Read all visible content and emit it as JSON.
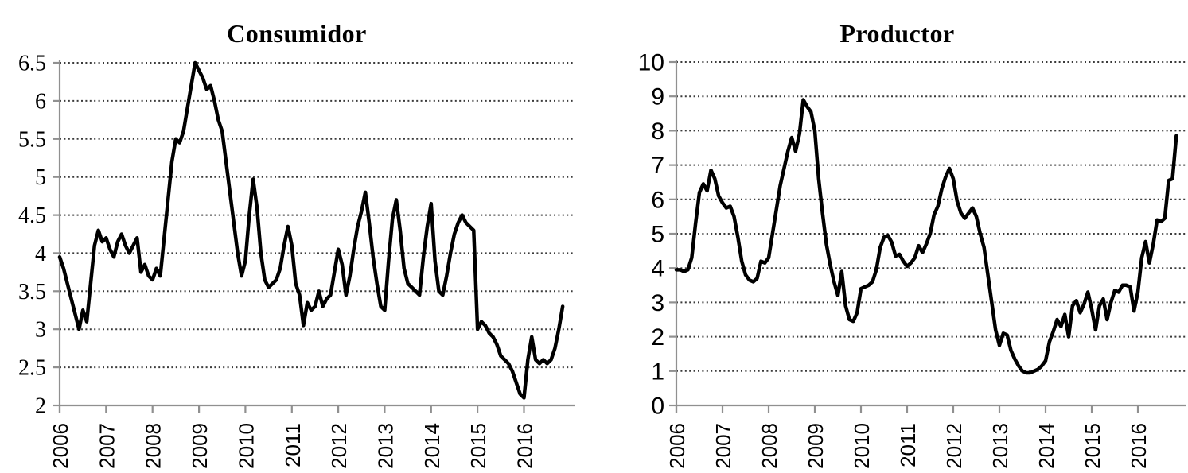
{
  "page": {
    "background": "#ffffff"
  },
  "chart_data": [
    {
      "type": "line",
      "title": "Consumidor",
      "x_unit": "monthly, Jan 2006 - Nov 2016",
      "x_tick_labels": [
        "2006",
        "2007",
        "2008",
        "2009",
        "2010",
        "2011",
        "2012",
        "2013",
        "2014",
        "2015",
        "2016"
      ],
      "ylim": [
        2,
        6.5
      ],
      "y_tick_labels": [
        "2",
        "2.5",
        "3",
        "3.5",
        "4",
        "4.5",
        "5",
        "5.5",
        "6",
        "6.5"
      ],
      "grid": "horizontal-dotted",
      "legend": "none",
      "line_color": "#000000",
      "axis_color": "#909090",
      "grid_color": "#3a3a3a",
      "values": [
        3.95,
        3.8,
        3.6,
        3.4,
        3.2,
        3.0,
        3.25,
        3.1,
        3.6,
        4.1,
        4.3,
        4.15,
        4.2,
        4.05,
        3.95,
        4.15,
        4.25,
        4.1,
        4.0,
        4.1,
        4.2,
        3.75,
        3.85,
        3.7,
        3.65,
        3.8,
        3.7,
        4.2,
        4.7,
        5.2,
        5.5,
        5.45,
        5.6,
        5.9,
        6.2,
        6.5,
        6.4,
        6.3,
        6.15,
        6.2,
        6.0,
        5.75,
        5.6,
        5.2,
        4.8,
        4.4,
        4.0,
        3.7,
        3.9,
        4.5,
        4.97,
        4.6,
        4.0,
        3.65,
        3.55,
        3.6,
        3.65,
        3.8,
        4.1,
        4.35,
        4.1,
        3.6,
        3.45,
        3.05,
        3.35,
        3.25,
        3.3,
        3.5,
        3.3,
        3.4,
        3.45,
        3.75,
        4.05,
        3.85,
        3.45,
        3.7,
        4.05,
        4.35,
        4.55,
        4.8,
        4.4,
        3.95,
        3.6,
        3.3,
        3.25,
        3.9,
        4.45,
        4.7,
        4.3,
        3.8,
        3.6,
        3.55,
        3.5,
        3.45,
        3.95,
        4.35,
        4.65,
        3.9,
        3.5,
        3.45,
        3.7,
        4.0,
        4.25,
        4.4,
        4.5,
        4.4,
        4.35,
        4.3,
        3.0,
        3.1,
        3.05,
        2.95,
        2.9,
        2.8,
        2.65,
        2.6,
        2.55,
        2.45,
        2.3,
        2.15,
        2.1,
        2.6,
        2.9,
        2.6,
        2.55,
        2.6,
        2.55,
        2.6,
        2.75,
        3.0,
        3.3
      ]
    },
    {
      "type": "line",
      "title": "Productor",
      "x_unit": "monthly, Jan 2006 - Nov 2016",
      "x_tick_labels": [
        "2006",
        "2007",
        "2008",
        "2009",
        "2010",
        "2011",
        "2012",
        "2013",
        "2014",
        "2015",
        "2016"
      ],
      "ylim": [
        0,
        10
      ],
      "y_tick_labels": [
        "0",
        "1",
        "2",
        "3",
        "4",
        "5",
        "6",
        "7",
        "8",
        "9",
        "10"
      ],
      "grid": "horizontal-dotted",
      "legend": "none",
      "line_color": "#000000",
      "axis_color": "#909090",
      "grid_color": "#3a3a3a",
      "values": [
        3.95,
        3.95,
        3.9,
        3.95,
        4.3,
        5.3,
        6.2,
        6.45,
        6.25,
        6.85,
        6.6,
        6.1,
        5.9,
        5.75,
        5.8,
        5.5,
        4.9,
        4.2,
        3.8,
        3.65,
        3.6,
        3.7,
        4.2,
        4.15,
        4.3,
        5.0,
        5.7,
        6.4,
        6.9,
        7.4,
        7.8,
        7.4,
        7.9,
        8.9,
        8.7,
        8.55,
        8.0,
        6.6,
        5.6,
        4.7,
        4.1,
        3.6,
        3.2,
        3.9,
        2.9,
        2.5,
        2.45,
        2.7,
        3.4,
        3.45,
        3.5,
        3.6,
        3.95,
        4.6,
        4.9,
        4.95,
        4.75,
        4.35,
        4.4,
        4.2,
        4.05,
        4.15,
        4.3,
        4.65,
        4.45,
        4.7,
        5.0,
        5.55,
        5.8,
        6.3,
        6.65,
        6.9,
        6.6,
        5.95,
        5.6,
        5.45,
        5.6,
        5.75,
        5.5,
        5.0,
        4.6,
        3.8,
        3.0,
        2.2,
        1.75,
        2.1,
        2.05,
        1.6,
        1.35,
        1.15,
        1.0,
        0.95,
        0.95,
        1.0,
        1.05,
        1.15,
        1.3,
        1.85,
        2.15,
        2.5,
        2.3,
        2.65,
        2.0,
        2.9,
        3.05,
        2.7,
        2.95,
        3.3,
        2.8,
        2.2,
        2.9,
        3.1,
        2.5,
        3.0,
        3.35,
        3.3,
        3.5,
        3.5,
        3.45,
        2.75,
        3.3,
        4.3,
        4.77,
        4.15,
        4.7,
        5.4,
        5.35,
        5.45,
        6.55,
        6.6,
        7.85
      ]
    }
  ]
}
